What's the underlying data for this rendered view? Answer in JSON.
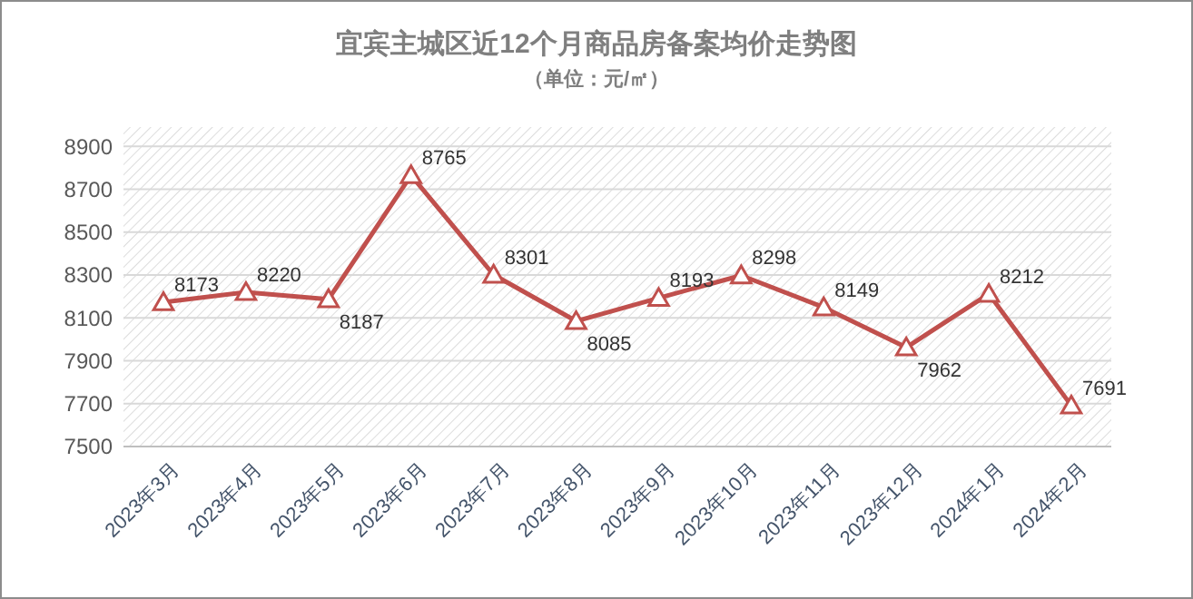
{
  "chart_data": {
    "type": "line",
    "title": "宜宾主城区近12个月商品房备案均价走势图",
    "subtitle": "（单位：元/㎡）",
    "categories": [
      "2023年3月",
      "2023年4月",
      "2023年5月",
      "2023年6月",
      "2023年7月",
      "2023年8月",
      "2023年9月",
      "2023年10月",
      "2023年11月",
      "2023年12月",
      "2024年1月",
      "2024年2月"
    ],
    "series": [
      {
        "color": "#c0504d",
        "values": [
          8173,
          8220,
          8187,
          8765,
          8301,
          8085,
          8193,
          8298,
          8149,
          7962,
          8212,
          7691
        ]
      }
    ],
    "ylim": [
      7500,
      8990
    ],
    "yticks": [
      7500,
      7700,
      7900,
      8100,
      8300,
      8500,
      8700,
      8900
    ],
    "grid": "y",
    "marker": "triangle",
    "line_style": "solid",
    "data_labels": true
  }
}
